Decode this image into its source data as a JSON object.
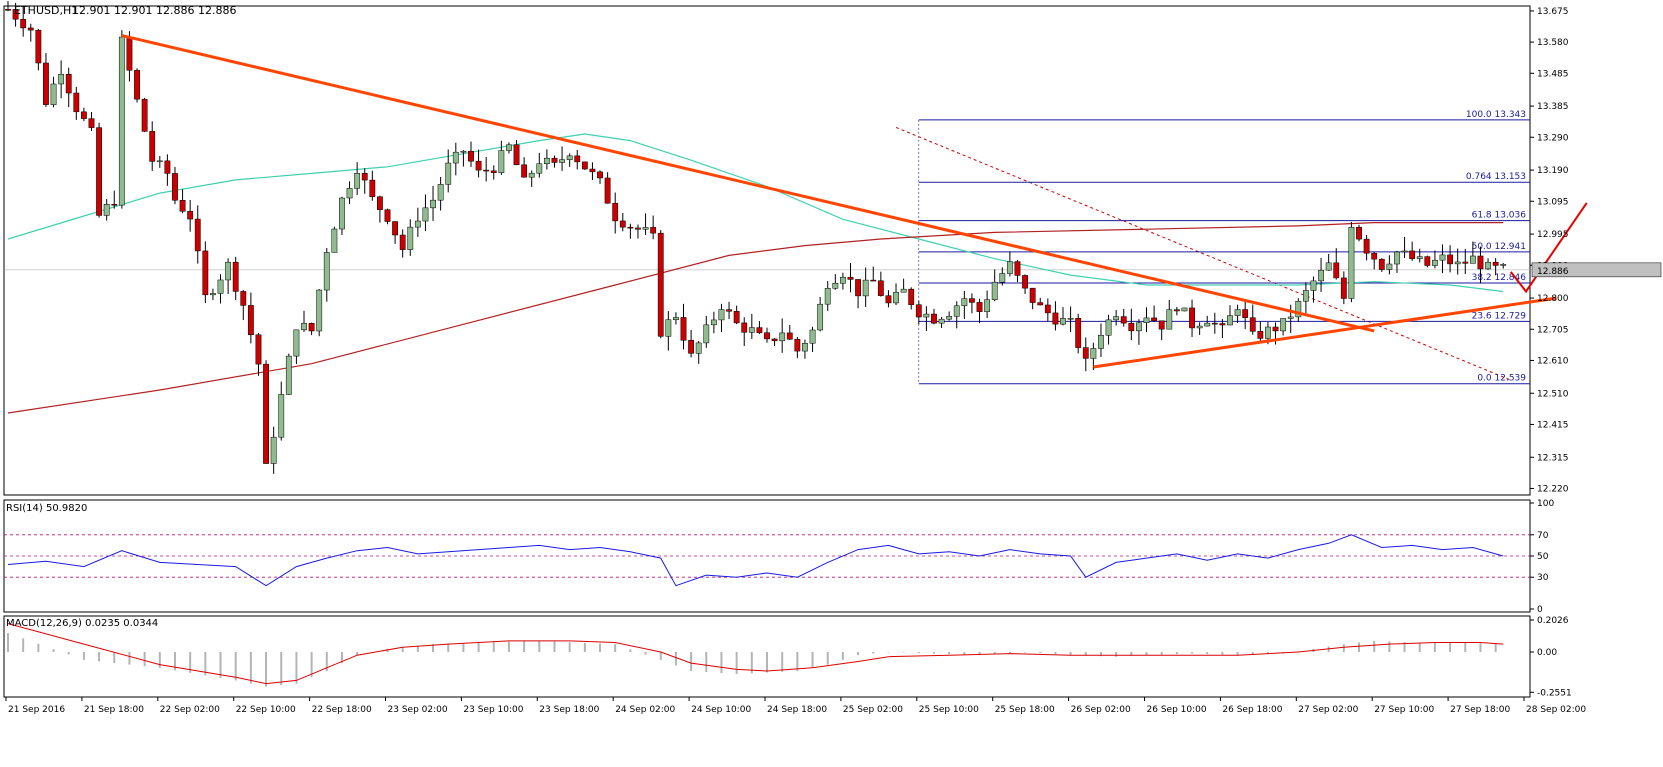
{
  "header": {
    "symbol": "ETHUSD,H1",
    "ohlc": "12.901 12.901 12.886 12.886"
  },
  "current_price": "12.886",
  "rsi": {
    "label": "RSI(14) 50.9820",
    "scale": [
      "100",
      "70",
      "50",
      "30",
      "0"
    ]
  },
  "macd": {
    "label": "MACD(12,26,9) 0.0235 0.0344",
    "scale": [
      "0.2026",
      "0.00",
      "-0.2551"
    ]
  },
  "colors": {
    "bull_candle": "#8fbc8f",
    "bear_candle": "#cc0000",
    "wick": "#000000",
    "ma_fast": "#40d0b0",
    "ma_slow": "#b22222",
    "trendline": "#ff4500",
    "fib": "#1a1aa0",
    "rsi_line": "#1a1ae6",
    "rsi_levels": "#c0147a",
    "macd_hist": "#b4b4b4",
    "macd_signal": "#dd0000",
    "arrow": "#e60000"
  },
  "chart_data": {
    "type": "candlestick",
    "x_labels": [
      "21 Sep 2016",
      "21 Sep 18:00",
      "22 Sep 02:00",
      "22 Sep 10:00",
      "22 Sep 18:00",
      "23 Sep 02:00",
      "23 Sep 10:00",
      "23 Sep 18:00",
      "24 Sep 02:00",
      "24 Sep 10:00",
      "24 Sep 18:00",
      "25 Sep 02:00",
      "25 Sep 10:00",
      "25 Sep 18:00",
      "26 Sep 02:00",
      "26 Sep 10:00",
      "26 Sep 18:00",
      "27 Sep 02:00",
      "27 Sep 10:00",
      "27 Sep 18:00",
      "28 Sep 02:00"
    ],
    "y_ticks": [
      "13.675",
      "13.580",
      "13.485",
      "13.385",
      "13.290",
      "13.190",
      "13.095",
      "12.995",
      "12.900",
      "12.800",
      "12.705",
      "12.610",
      "12.510",
      "12.415",
      "12.315",
      "12.220"
    ],
    "ylim": [
      12.2,
      13.69
    ],
    "fib_levels": [
      {
        "level": "100.0",
        "price": "13.343"
      },
      {
        "level": "0.764",
        "price": "13.153"
      },
      {
        "level": "61.8",
        "price": "13.036"
      },
      {
        "level": "50.0",
        "price": "12.941"
      },
      {
        "level": "38.2",
        "price": "12.846"
      },
      {
        "level": "23.6",
        "price": "12.729"
      },
      {
        "level": "0.0",
        "price": "12.539"
      }
    ],
    "pivots": [
      [
        0,
        13.68
      ],
      [
        3,
        13.62
      ],
      [
        5,
        13.4
      ],
      [
        7,
        13.5
      ],
      [
        9,
        13.38
      ],
      [
        11,
        13.3
      ],
      [
        12,
        13.05
      ],
      [
        14,
        13.1
      ],
      [
        15,
        13.58
      ],
      [
        17,
        13.4
      ],
      [
        19,
        13.22
      ],
      [
        21,
        13.18
      ],
      [
        22,
        13.1
      ],
      [
        24,
        13.05
      ],
      [
        26,
        12.8
      ],
      [
        29,
        12.9
      ],
      [
        31,
        12.78
      ],
      [
        33,
        12.6
      ],
      [
        34,
        12.28
      ],
      [
        36,
        12.5
      ],
      [
        38,
        12.72
      ],
      [
        40,
        12.7
      ],
      [
        42,
        12.95
      ],
      [
        44,
        13.1
      ],
      [
        46,
        13.2
      ],
      [
        48,
        13.1
      ],
      [
        50,
        13.05
      ],
      [
        52,
        12.95
      ],
      [
        54,
        13.05
      ],
      [
        56,
        13.1
      ],
      [
        58,
        13.2
      ],
      [
        60,
        13.25
      ],
      [
        62,
        13.18
      ],
      [
        64,
        13.2
      ],
      [
        66,
        13.26
      ],
      [
        68,
        13.15
      ],
      [
        70,
        13.22
      ],
      [
        72,
        13.2
      ],
      [
        74,
        13.25
      ],
      [
        76,
        13.2
      ],
      [
        78,
        13.15
      ],
      [
        80,
        13.05
      ],
      [
        82,
        13.02
      ],
      [
        84,
        13.0
      ],
      [
        85,
        12.98
      ],
      [
        86,
        12.7
      ],
      [
        88,
        12.75
      ],
      [
        90,
        12.62
      ],
      [
        92,
        12.7
      ],
      [
        94,
        12.78
      ],
      [
        96,
        12.72
      ],
      [
        98,
        12.7
      ],
      [
        100,
        12.66
      ],
      [
        102,
        12.7
      ],
      [
        104,
        12.64
      ],
      [
        106,
        12.7
      ],
      [
        108,
        12.85
      ],
      [
        110,
        12.88
      ],
      [
        112,
        12.82
      ],
      [
        114,
        12.85
      ],
      [
        116,
        12.78
      ],
      [
        118,
        12.82
      ],
      [
        120,
        12.76
      ],
      [
        122,
        12.74
      ],
      [
        124,
        12.76
      ],
      [
        126,
        12.8
      ],
      [
        128,
        12.76
      ],
      [
        130,
        12.85
      ],
      [
        132,
        12.9
      ],
      [
        134,
        12.82
      ],
      [
        136,
        12.77
      ],
      [
        138,
        12.74
      ],
      [
        140,
        12.72
      ],
      [
        142,
        12.6
      ],
      [
        144,
        12.7
      ],
      [
        146,
        12.76
      ],
      [
        148,
        12.72
      ],
      [
        150,
        12.75
      ],
      [
        152,
        12.72
      ],
      [
        154,
        12.78
      ],
      [
        156,
        12.72
      ],
      [
        158,
        12.74
      ],
      [
        160,
        12.7
      ],
      [
        162,
        12.78
      ],
      [
        164,
        12.68
      ],
      [
        166,
        12.7
      ],
      [
        168,
        12.72
      ],
      [
        170,
        12.78
      ],
      [
        172,
        12.85
      ],
      [
        174,
        12.9
      ],
      [
        176,
        12.8
      ],
      [
        177,
        13.03
      ],
      [
        179,
        12.95
      ],
      [
        181,
        12.9
      ],
      [
        183,
        12.94
      ],
      [
        185,
        12.92
      ],
      [
        187,
        12.9
      ],
      [
        189,
        12.92
      ],
      [
        191,
        12.9
      ],
      [
        193,
        12.92
      ],
      [
        195,
        12.89
      ],
      [
        197,
        12.886
      ]
    ],
    "ma_fast": [
      [
        0,
        12.98
      ],
      [
        10,
        13.05
      ],
      [
        20,
        13.12
      ],
      [
        30,
        13.16
      ],
      [
        40,
        13.18
      ],
      [
        50,
        13.2
      ],
      [
        60,
        13.24
      ],
      [
        70,
        13.28
      ],
      [
        76,
        13.3
      ],
      [
        82,
        13.28
      ],
      [
        90,
        13.22
      ],
      [
        100,
        13.14
      ],
      [
        110,
        13.04
      ],
      [
        120,
        12.98
      ],
      [
        130,
        12.92
      ],
      [
        140,
        12.87
      ],
      [
        150,
        12.84
      ],
      [
        160,
        12.84
      ],
      [
        170,
        12.84
      ],
      [
        180,
        12.85
      ],
      [
        190,
        12.84
      ],
      [
        197,
        12.82
      ]
    ],
    "ma_slow": [
      [
        0,
        12.45
      ],
      [
        20,
        12.52
      ],
      [
        40,
        12.6
      ],
      [
        60,
        12.72
      ],
      [
        80,
        12.84
      ],
      [
        95,
        12.93
      ],
      [
        105,
        12.96
      ],
      [
        115,
        12.98
      ],
      [
        130,
        13.0
      ],
      [
        150,
        13.01
      ],
      [
        170,
        13.02
      ],
      [
        180,
        13.03
      ],
      [
        197,
        13.03
      ]
    ],
    "trendlines": [
      {
        "name": "descending",
        "points": [
          [
            15,
            13.6
          ],
          [
            180,
            12.7
          ]
        ]
      },
      {
        "name": "ascending",
        "points": [
          [
            143,
            12.59
          ],
          [
            204,
            12.8
          ]
        ]
      }
    ],
    "arrow_points": [
      [
        198,
        12.88
      ],
      [
        200,
        12.82
      ],
      [
        208,
        13.09
      ]
    ],
    "rsi_series": [
      [
        0,
        42
      ],
      [
        5,
        45
      ],
      [
        10,
        40
      ],
      [
        15,
        55
      ],
      [
        20,
        44
      ],
      [
        25,
        42
      ],
      [
        30,
        40
      ],
      [
        34,
        22
      ],
      [
        38,
        40
      ],
      [
        42,
        48
      ],
      [
        46,
        55
      ],
      [
        50,
        58
      ],
      [
        54,
        52
      ],
      [
        58,
        54
      ],
      [
        62,
        56
      ],
      [
        66,
        58
      ],
      [
        70,
        60
      ],
      [
        74,
        56
      ],
      [
        78,
        58
      ],
      [
        82,
        54
      ],
      [
        86,
        48
      ],
      [
        88,
        22
      ],
      [
        92,
        32
      ],
      [
        96,
        30
      ],
      [
        100,
        34
      ],
      [
        104,
        30
      ],
      [
        108,
        44
      ],
      [
        112,
        56
      ],
      [
        116,
        60
      ],
      [
        120,
        52
      ],
      [
        124,
        54
      ],
      [
        128,
        50
      ],
      [
        132,
        56
      ],
      [
        136,
        52
      ],
      [
        140,
        50
      ],
      [
        142,
        30
      ],
      [
        146,
        44
      ],
      [
        150,
        48
      ],
      [
        154,
        52
      ],
      [
        158,
        46
      ],
      [
        162,
        52
      ],
      [
        166,
        48
      ],
      [
        170,
        56
      ],
      [
        174,
        62
      ],
      [
        177,
        70
      ],
      [
        181,
        58
      ],
      [
        185,
        60
      ],
      [
        189,
        56
      ],
      [
        193,
        58
      ],
      [
        197,
        50
      ]
    ],
    "macd_hist": [
      [
        0,
        0.12
      ],
      [
        10,
        -0.05
      ],
      [
        20,
        -0.1
      ],
      [
        30,
        -0.18
      ],
      [
        34,
        -0.22
      ],
      [
        38,
        -0.2
      ],
      [
        42,
        -0.12
      ],
      [
        46,
        -0.02
      ],
      [
        50,
        0.02
      ],
      [
        56,
        0.05
      ],
      [
        62,
        0.06
      ],
      [
        70,
        0.07
      ],
      [
        80,
        0.05
      ],
      [
        86,
        -0.05
      ],
      [
        90,
        -0.12
      ],
      [
        96,
        -0.14
      ],
      [
        100,
        -0.13
      ],
      [
        104,
        -0.12
      ],
      [
        108,
        -0.08
      ],
      [
        112,
        -0.02
      ],
      [
        116,
        0.0
      ],
      [
        122,
        -0.01
      ],
      [
        128,
        -0.02
      ],
      [
        134,
        0.0
      ],
      [
        140,
        -0.02
      ],
      [
        146,
        -0.03
      ],
      [
        150,
        -0.02
      ],
      [
        156,
        -0.01
      ],
      [
        162,
        -0.02
      ],
      [
        168,
        -0.01
      ],
      [
        172,
        0.02
      ],
      [
        176,
        0.05
      ],
      [
        180,
        0.07
      ],
      [
        186,
        0.06
      ],
      [
        192,
        0.06
      ],
      [
        197,
        0.05
      ]
    ],
    "macd_signal": [
      [
        0,
        0.18
      ],
      [
        10,
        0.05
      ],
      [
        20,
        -0.08
      ],
      [
        30,
        -0.16
      ],
      [
        34,
        -0.2
      ],
      [
        38,
        -0.18
      ],
      [
        42,
        -0.1
      ],
      [
        46,
        -0.02
      ],
      [
        52,
        0.03
      ],
      [
        58,
        0.05
      ],
      [
        66,
        0.07
      ],
      [
        74,
        0.07
      ],
      [
        80,
        0.06
      ],
      [
        86,
        0.0
      ],
      [
        90,
        -0.07
      ],
      [
        96,
        -0.11
      ],
      [
        100,
        -0.12
      ],
      [
        106,
        -0.1
      ],
      [
        112,
        -0.06
      ],
      [
        116,
        -0.03
      ],
      [
        124,
        -0.02
      ],
      [
        132,
        -0.01
      ],
      [
        140,
        -0.02
      ],
      [
        146,
        -0.02
      ],
      [
        154,
        -0.02
      ],
      [
        162,
        -0.02
      ],
      [
        170,
        0.0
      ],
      [
        176,
        0.03
      ],
      [
        182,
        0.05
      ],
      [
        188,
        0.06
      ],
      [
        194,
        0.06
      ],
      [
        197,
        0.05
      ]
    ]
  }
}
